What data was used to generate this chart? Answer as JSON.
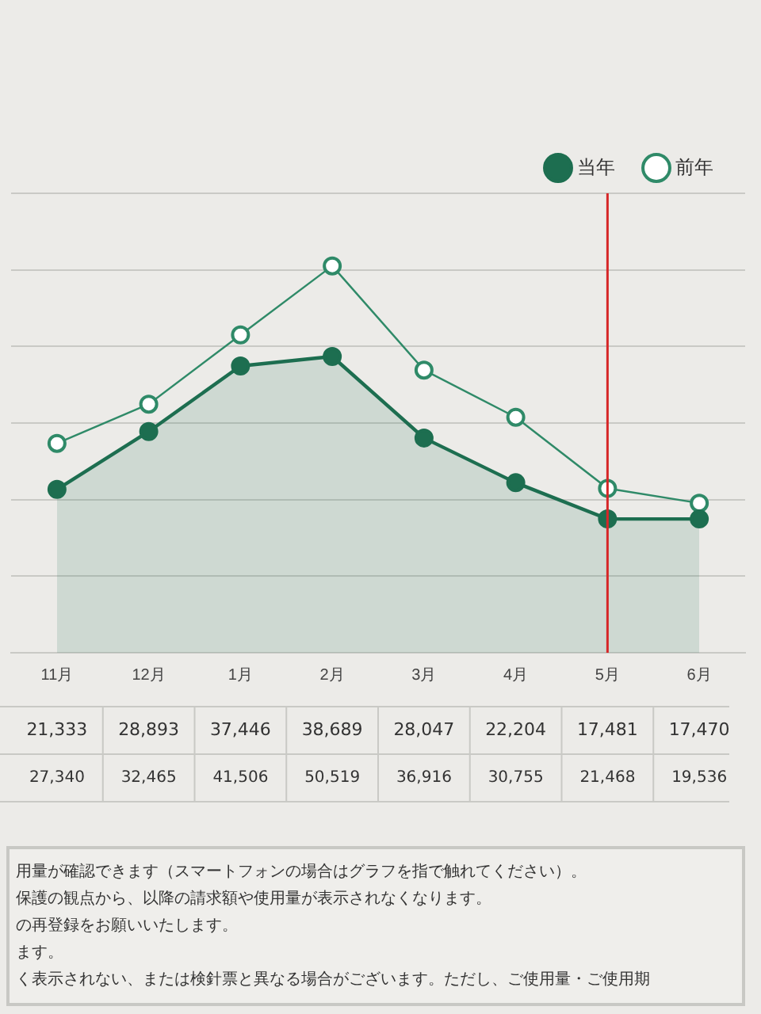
{
  "chart_data": {
    "type": "line",
    "categories": [
      "11月",
      "12月",
      "1月",
      "2月",
      "3月",
      "4月",
      "5月",
      "6月"
    ],
    "series": [
      {
        "name": "前年",
        "type": "line",
        "color": "#2f8a68",
        "marker": "circle",
        "values": [
          27340,
          32465,
          41506,
          50519,
          36916,
          30755,
          21468,
          19536
        ],
        "value_labels": [
          "27,340",
          "32,465",
          "41,506",
          "50,519",
          "36,916",
          "30,755",
          "21,468",
          "19,536"
        ]
      },
      {
        "name": "当年",
        "type": "area",
        "color": "#1d6e50",
        "marker": "circle",
        "values": [
          21333,
          28893,
          37446,
          38689,
          28047,
          22204,
          17481,
          17470
        ],
        "value_labels": [
          "21,333",
          "28,893",
          "37,446",
          "38,689",
          "28,047",
          "22,204",
          "17,481",
          "17,470"
        ]
      }
    ],
    "tick_labels": "x",
    "grid": "y",
    "legend": "top right",
    "ref_lines": [
      {
        "axis": "x",
        "value": "5月",
        "color": "#d62728"
      }
    ],
    "annotations": [
      "用量が確認できます（スマートフォンの場合はグラフを指で触れてください）。",
      "保護の観点から、以降の請求額や使用量が表示されなくなります。",
      "の再登録をお願いいたします。",
      "ます。",
      "く表示されない、または検針票と異なる場合がございます。ただし、ご使用量・ご使用期"
    ]
  }
}
